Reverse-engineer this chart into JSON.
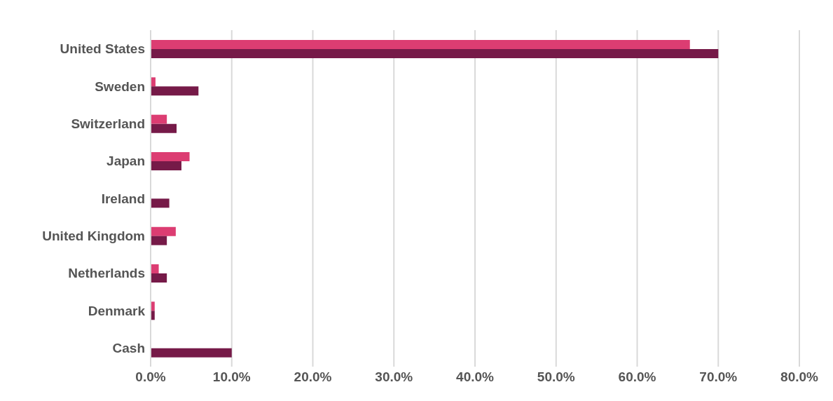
{
  "chart_data": {
    "type": "bar",
    "orientation": "horizontal",
    "categories": [
      "United States",
      "Sweden",
      "Switzerland",
      "Japan",
      "Ireland",
      "United Kingdom",
      "Netherlands",
      "Denmark",
      "Cash"
    ],
    "series": [
      {
        "color": "#dc3d72",
        "values": [
          66.5,
          0.6,
          2.0,
          4.8,
          0,
          3.1,
          1.0,
          0.5,
          0
        ]
      },
      {
        "color": "#761a48",
        "values": [
          70.0,
          5.9,
          3.2,
          3.8,
          2.3,
          2.0,
          2.0,
          0.5,
          10.0
        ]
      }
    ],
    "xlim": [
      0,
      80
    ],
    "xticks": [
      {
        "value": 0,
        "label": "0.0%"
      },
      {
        "value": 10,
        "label": "10.0%"
      },
      {
        "value": 20,
        "label": "20.0%"
      },
      {
        "value": 30,
        "label": "30.0%"
      },
      {
        "value": 40,
        "label": "40.0%"
      },
      {
        "value": 50,
        "label": "50.0%"
      },
      {
        "value": 60,
        "label": "60.0%"
      },
      {
        "value": 70,
        "label": "70.0%"
      },
      {
        "value": 80,
        "label": "80.0%"
      }
    ],
    "grid": "x"
  }
}
